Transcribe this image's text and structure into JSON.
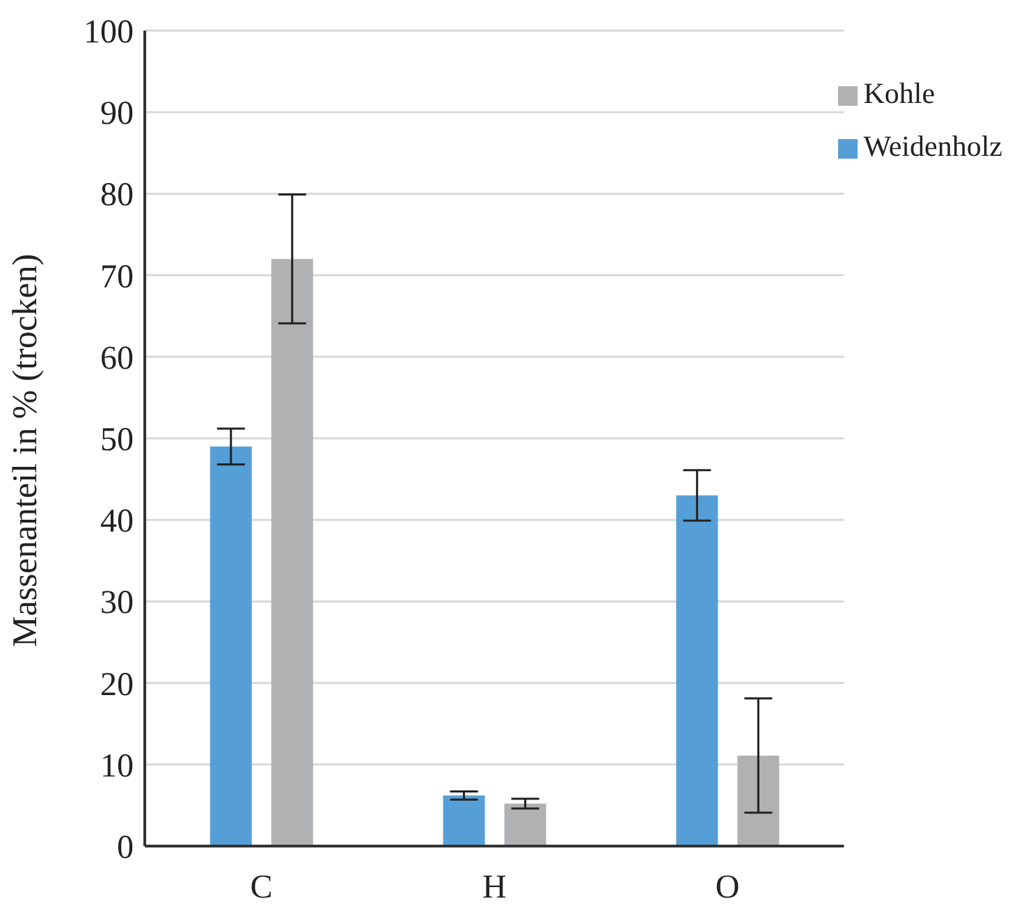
{
  "chart_data": {
    "type": "bar",
    "ylabel": "Massenanteil in % (trocken)",
    "categories": [
      "C",
      "H",
      "O"
    ],
    "series": [
      {
        "name": "Weidenholz",
        "color": "#569fd6",
        "values": [
          49,
          6.2,
          43
        ],
        "errors": [
          2.2,
          0.5,
          3.1
        ]
      },
      {
        "name": "Kohle",
        "color": "#b0b1b3",
        "values": [
          72,
          5.2,
          11.1
        ],
        "errors": [
          7.9,
          0.6,
          7
        ]
      }
    ],
    "ylim": [
      0,
      100
    ],
    "yticks": [
      0,
      10,
      20,
      30,
      40,
      50,
      60,
      70,
      80,
      90,
      100
    ],
    "grid": "y",
    "legend": "top right"
  }
}
